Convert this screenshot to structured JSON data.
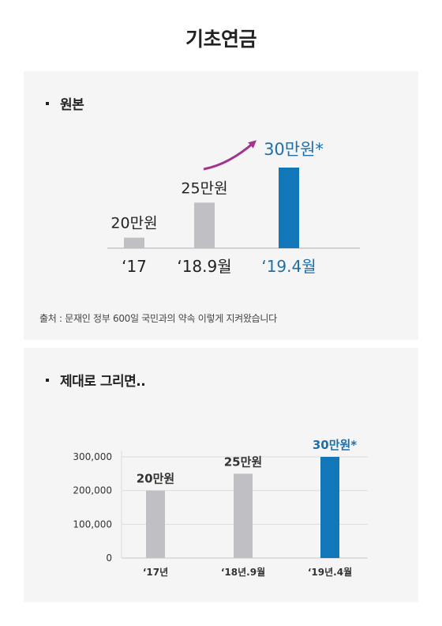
{
  "page": {
    "title": "기초연금"
  },
  "panel1": {
    "heading": "원본",
    "source": "출처 : 문재인 정부 600일 국민과의 약속 이렇게 지켜왔습니다"
  },
  "panel2": {
    "heading": "제대로 그리면.."
  },
  "colors": {
    "gray_bar": "#c0c0c4",
    "highlight_bar": "#1277b8",
    "arrow": "#a1348f",
    "highlight_text": "#1f6fa8"
  },
  "chart_data": [
    {
      "type": "bar",
      "title": "",
      "categories": [
        "‘17",
        "‘18.9월",
        "‘19.4월"
      ],
      "values": [
        200000,
        250000,
        300000
      ],
      "data_labels": [
        "20만원",
        "25만원",
        "30만원*"
      ],
      "highlight_index": 2,
      "xlabel": "",
      "ylabel": "",
      "y_axis": "none",
      "annotation": "arrow-up-right toward 30만원*"
    },
    {
      "type": "bar",
      "title": "",
      "categories": [
        "‘17년",
        "‘18년.9월",
        "‘19년.4월"
      ],
      "values": [
        200000,
        250000,
        300000
      ],
      "data_labels": [
        "20만원",
        "25만원",
        "30만원*"
      ],
      "highlight_index": 2,
      "xlabel": "",
      "ylabel": "",
      "ylim": [
        0,
        300000
      ],
      "yticks": [
        0,
        100000,
        200000,
        300000
      ],
      "ytick_labels": [
        "0",
        "100,000",
        "200,000",
        "300,000"
      ],
      "grid": true,
      "legend": "none"
    }
  ]
}
